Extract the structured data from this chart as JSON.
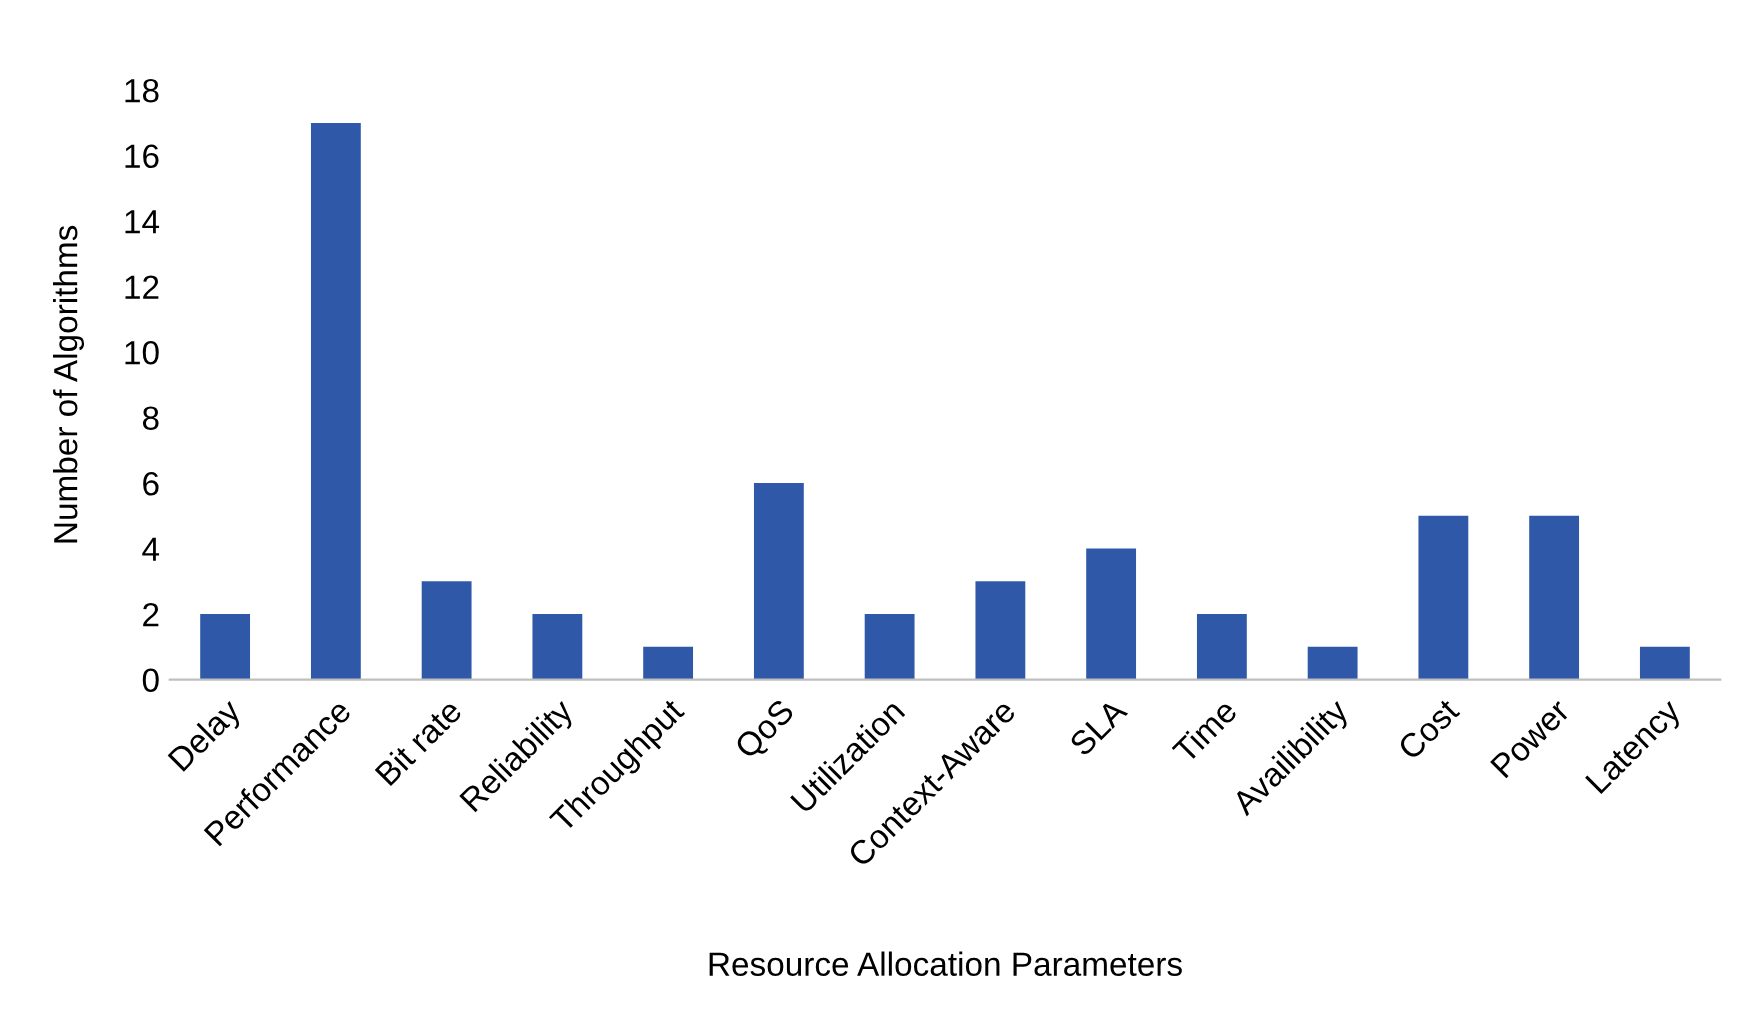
{
  "chart_data": {
    "type": "bar",
    "xlabel": "Resource Allocation Parameters",
    "ylabel": "Number of Algorithms",
    "categories": [
      "Delay",
      "Performance",
      "Bit rate",
      "Reliability",
      "Throughput",
      "QoS",
      "Utilization",
      "Context-Aware",
      "SLA",
      "Time",
      "Availibility",
      "Cost",
      "Power",
      "Latency"
    ],
    "values": [
      2,
      17,
      3,
      2,
      1,
      6,
      2,
      3,
      4,
      2,
      1,
      5,
      5,
      1
    ],
    "color": "#2f58a8",
    "ylim": [
      0,
      18
    ],
    "yticks": [
      0,
      2,
      4,
      6,
      8,
      10,
      12,
      14,
      16,
      18
    ],
    "grid": false,
    "legend": false
  }
}
